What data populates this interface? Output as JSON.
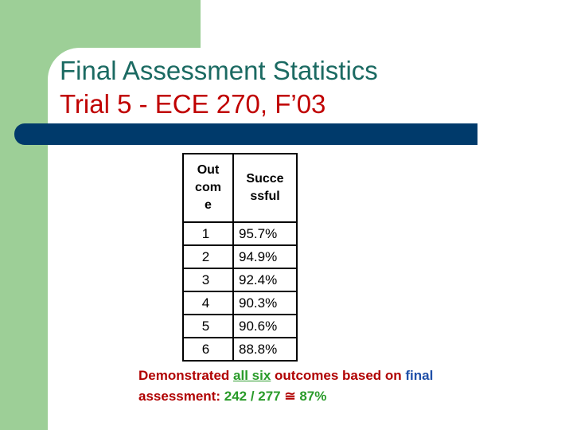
{
  "slide": {
    "title_line1": "Final Assessment Statistics",
    "title_line2": "Trial 5 - ECE 270, F’03"
  },
  "table": {
    "headers": [
      "Outcome",
      "Successful"
    ],
    "rows": [
      {
        "outcome": "1",
        "successful": "95.7%"
      },
      {
        "outcome": "2",
        "successful": "94.9%"
      },
      {
        "outcome": "3",
        "successful": "92.4%"
      },
      {
        "outcome": "4",
        "successful": "90.3%"
      },
      {
        "outcome": "5",
        "successful": "90.6%"
      },
      {
        "outcome": "6",
        "successful": "88.8%"
      }
    ]
  },
  "summary": {
    "part1": "Demonstrated ",
    "part2": "all six",
    "part3": " outcomes based on ",
    "part4": "final",
    "part5": " assessment: ",
    "part6": "242 / 277",
    "part7": " ≅ ",
    "part8": " 87%"
  },
  "colors": {
    "green_block": "#9dcf97",
    "title_teal": "#1b6a62",
    "title_red": "#c00000",
    "bar_navy": "#003a6b",
    "summary_red": "#b00000",
    "summary_green": "#2a9b2a",
    "summary_blue": "#1f4fa8"
  }
}
